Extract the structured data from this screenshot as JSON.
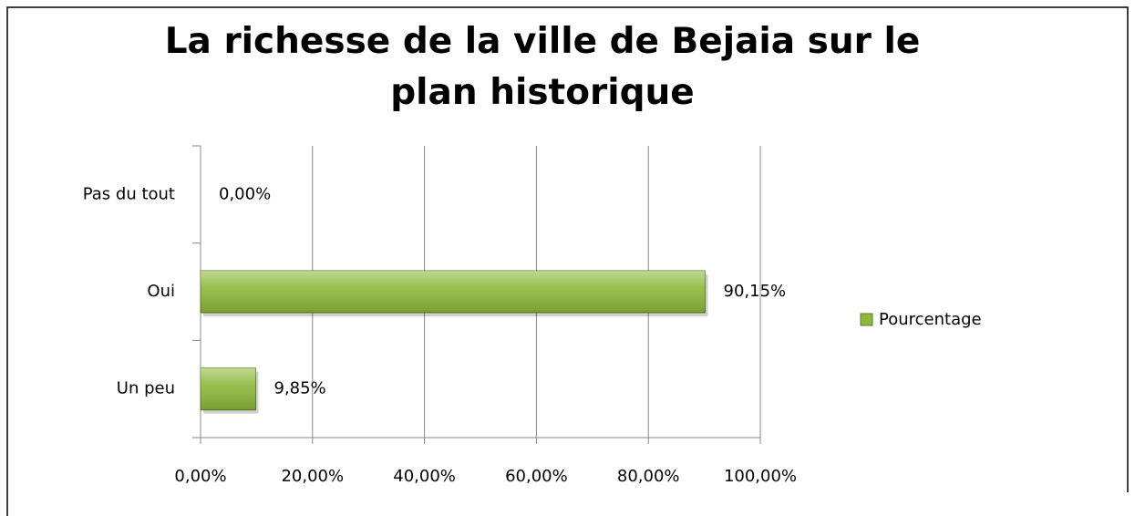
{
  "chart_data": {
    "type": "hbar",
    "title": "La richesse de la ville de Bejaia sur le plan historique",
    "categories": [
      "Un peu",
      "Oui",
      "Pas du tout"
    ],
    "series": [
      {
        "name": "Pourcentage",
        "color": "#8db83a",
        "values": [
          9.85,
          90.15,
          0
        ],
        "value_labels": [
          "9,85%",
          "90,15%",
          "0,00%"
        ]
      }
    ],
    "xlim": [
      0,
      100
    ],
    "xticks": [
      {
        "value": 0,
        "label": "0,00%"
      },
      {
        "value": 20,
        "label": "20,00%"
      },
      {
        "value": 40,
        "label": "40,00%"
      },
      {
        "value": 60,
        "label": "60,00%"
      },
      {
        "value": 80,
        "label": "80,00%"
      },
      {
        "value": 100,
        "label": "100,00%"
      }
    ],
    "grid": true,
    "legend": "right"
  }
}
